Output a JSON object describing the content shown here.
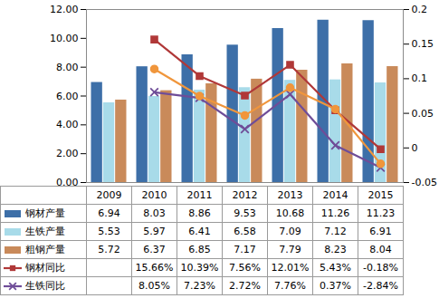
{
  "chart_data": {
    "type": "bar",
    "categories": [
      "2009",
      "2010",
      "2011",
      "2012",
      "2013",
      "2014",
      "2015"
    ],
    "ylim": [
      0,
      12
    ],
    "yticks": [
      {
        "value": 0,
        "label": "0.00"
      },
      {
        "value": 2,
        "label": "2.00"
      },
      {
        "value": 4,
        "label": "4.00"
      },
      {
        "value": 6,
        "label": "6.00"
      },
      {
        "value": 8,
        "label": "8.00"
      },
      {
        "value": 10,
        "label": "10.00"
      },
      {
        "value": 12,
        "label": "12.00"
      }
    ],
    "y2lim": [
      -0.05,
      0.2
    ],
    "y2ticks": [
      -0.05,
      0,
      0.05,
      0.1,
      0.15,
      0.2
    ],
    "grid": false,
    "series": [
      {
        "name": "钢材产量",
        "type": "bar",
        "color": "#3d6fa8",
        "values": [
          6.94,
          8.03,
          8.86,
          9.53,
          10.68,
          11.26,
          11.23
        ]
      },
      {
        "name": "生铁产量",
        "type": "bar",
        "color": "#a8dbe9",
        "values": [
          5.53,
          5.97,
          6.41,
          6.58,
          7.09,
          7.12,
          6.91
        ]
      },
      {
        "name": "粗钢产量",
        "type": "bar",
        "color": "#c98a5a",
        "values": [
          5.72,
          6.37,
          6.85,
          7.17,
          7.79,
          8.23,
          8.04
        ]
      },
      {
        "name": "钢材同比",
        "type": "line",
        "axis": "y2",
        "color": "#b03838",
        "marker": "square",
        "values": [
          null,
          0.1566,
          0.1039,
          0.0756,
          0.1201,
          0.0543,
          -0.0018
        ],
        "value_labels": [
          null,
          "15.66%",
          "10.39%",
          "7.56%",
          "12.01%",
          "5.43%",
          "-0.18%"
        ]
      },
      {
        "name": "生铁同比",
        "type": "line",
        "axis": "y2",
        "color": "#6f4d98",
        "marker": "x",
        "values": [
          null,
          0.0805,
          0.0723,
          0.0272,
          0.0776,
          0.0037,
          -0.0284
        ],
        "value_labels": [
          null,
          "8.05%",
          "7.23%",
          "2.72%",
          "7.76%",
          "0.37%",
          "-2.84%"
        ]
      },
      {
        "type": "line",
        "axis": "y2",
        "color": "#f0963c",
        "marker": "circle",
        "values": [
          null,
          0.114,
          0.075,
          0.047,
          0.087,
          0.056,
          -0.023
        ]
      }
    ]
  }
}
